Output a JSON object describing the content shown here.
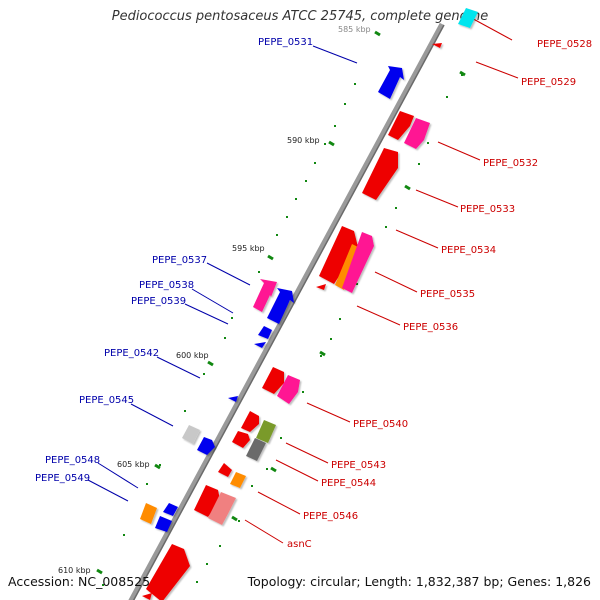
{
  "title": "Pediococcus pentosaceus ATCC 25745, complete genome",
  "footer": {
    "accession": "Accession: NC_008525",
    "summary": "Topology: circular; Length: 1,832,387 bp; Genes: 1,826"
  },
  "colors": {
    "backbone": "#8a8a8a",
    "forward_label": "#cc0000",
    "reverse_label": "#0000aa",
    "tick": "#118811"
  },
  "scale_ticks": [
    {
      "label": "585 kbp"
    },
    {
      "label": "590 kbp"
    },
    {
      "label": "595 kbp"
    },
    {
      "label": "600 kbp"
    },
    {
      "label": "605 kbp"
    },
    {
      "label": "610 kbp"
    }
  ],
  "gene_labels": [
    {
      "name": "PEPE_0528",
      "strand": "forward"
    },
    {
      "name": "PEPE_0529",
      "strand": "forward"
    },
    {
      "name": "PEPE_0531",
      "strand": "reverse"
    },
    {
      "name": "PEPE_0532",
      "strand": "forward"
    },
    {
      "name": "PEPE_0533",
      "strand": "forward"
    },
    {
      "name": "PEPE_0534",
      "strand": "forward"
    },
    {
      "name": "PEPE_0535",
      "strand": "forward"
    },
    {
      "name": "PEPE_0536",
      "strand": "forward"
    },
    {
      "name": "PEPE_0537",
      "strand": "reverse"
    },
    {
      "name": "PEPE_0538",
      "strand": "reverse"
    },
    {
      "name": "PEPE_0539",
      "strand": "reverse"
    },
    {
      "name": "PEPE_0540",
      "strand": "forward"
    },
    {
      "name": "PEPE_0542",
      "strand": "reverse"
    },
    {
      "name": "PEPE_0543",
      "strand": "forward"
    },
    {
      "name": "PEPE_0544",
      "strand": "forward"
    },
    {
      "name": "PEPE_0545",
      "strand": "reverse"
    },
    {
      "name": "PEPE_0546",
      "strand": "forward"
    },
    {
      "name": "PEPE_0548",
      "strand": "reverse"
    },
    {
      "name": "PEPE_0549",
      "strand": "reverse"
    },
    {
      "name": "asnC",
      "strand": "forward"
    }
  ]
}
